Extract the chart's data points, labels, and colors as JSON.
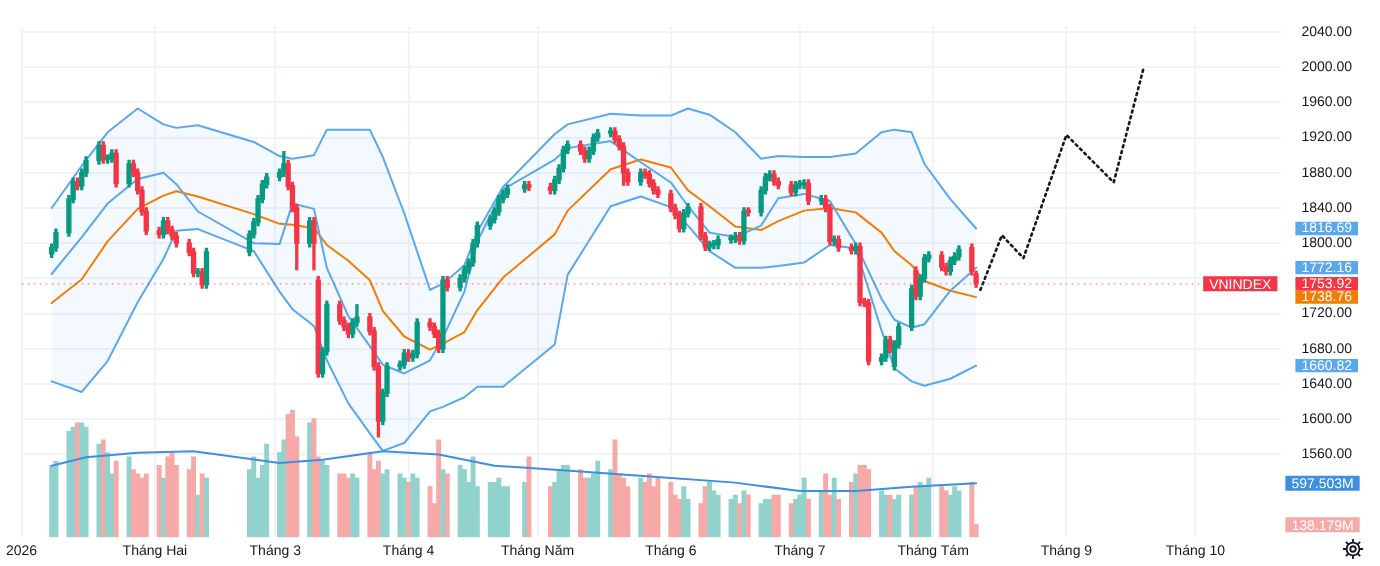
{
  "chart_data": {
    "type": "candlestick",
    "x": [
      "2026-01-08",
      "2026-01-09",
      "2026-01-12",
      "2026-01-13",
      "2026-01-14",
      "2026-01-15",
      "2026-01-16",
      "2026-01-19",
      "2026-01-20",
      "2026-01-21",
      "2026-01-22",
      "2026-01-23",
      "2026-01-26",
      "2026-01-27",
      "2026-01-28",
      "2026-01-29",
      "2026-01-30",
      "2026-02-02",
      "2026-02-03",
      "2026-02-04",
      "2026-02-05",
      "2026-02-06",
      "2026-02-09",
      "2026-02-10",
      "2026-02-11",
      "2026-02-12",
      "2026-02-13",
      "2026-02-23",
      "2026-02-24",
      "2026-02-25",
      "2026-02-26",
      "2026-02-27",
      "2026-03-02",
      "2026-03-03",
      "2026-03-04",
      "2026-03-05",
      "2026-03-06",
      "2026-03-09",
      "2026-03-10",
      "2026-03-11",
      "2026-03-12",
      "2026-03-13",
      "2026-03-16",
      "2026-03-17",
      "2026-03-18",
      "2026-03-19",
      "2026-03-20",
      "2026-03-23",
      "2026-03-24",
      "2026-03-25",
      "2026-03-26",
      "2026-03-27",
      "2026-03-30",
      "2026-03-31",
      "2026-04-01",
      "2026-04-02",
      "2026-04-03",
      "2026-04-06",
      "2026-04-07",
      "2026-04-08",
      "2026-04-09",
      "2026-04-10",
      "2026-04-13",
      "2026-04-14",
      "2026-04-15",
      "2026-04-16",
      "2026-04-17",
      "2026-04-20",
      "2026-04-21",
      "2026-04-22",
      "2026-04-23",
      "2026-04-24",
      "2026-04-28",
      "2026-04-29",
      "2026-05-04",
      "2026-05-05",
      "2026-05-06",
      "2026-05-07",
      "2026-05-08",
      "2026-05-11",
      "2026-05-12",
      "2026-05-13",
      "2026-05-14",
      "2026-05-15",
      "2026-05-18",
      "2026-05-19",
      "2026-05-20",
      "2026-05-21",
      "2026-05-22",
      "2026-05-25",
      "2026-05-26",
      "2026-05-27",
      "2026-05-28",
      "2026-05-29",
      "2026-06-01",
      "2026-06-02",
      "2026-06-03",
      "2026-06-04",
      "2026-06-05",
      "2026-06-08",
      "2026-06-09",
      "2026-06-10",
      "2026-06-11",
      "2026-06-12",
      "2026-06-15",
      "2026-06-16",
      "2026-06-17",
      "2026-06-18",
      "2026-06-19",
      "2026-06-22",
      "2026-06-23",
      "2026-06-24",
      "2026-06-25",
      "2026-06-26",
      "2026-06-29",
      "2026-06-30",
      "2026-07-01",
      "2026-07-02",
      "2026-07-03",
      "2026-07-06",
      "2026-07-07",
      "2026-07-08",
      "2026-07-09",
      "2026-07-10",
      "2026-07-13",
      "2026-07-14",
      "2026-07-15",
      "2026-07-16",
      "2026-07-17",
      "2026-07-20",
      "2026-07-21",
      "2026-07-22",
      "2026-07-23",
      "2026-07-24",
      "2026-07-27",
      "2026-07-28",
      "2026-07-29",
      "2026-07-30",
      "2026-07-31",
      "2026-08-03",
      "2026-08-04",
      "2026-08-05",
      "2026-08-06",
      "2026-08-07",
      "2026-08-10",
      "2026-08-11"
    ],
    "ohlc": [
      [
        1788,
        1799,
        1784,
        1795
      ],
      [
        1795,
        1816,
        1791,
        1812
      ],
      [
        1812,
        1854,
        1808,
        1850
      ],
      [
        1850,
        1874,
        1846,
        1870
      ],
      [
        1870,
        1874,
        1861,
        1865
      ],
      [
        1865,
        1884,
        1861,
        1880
      ],
      [
        1880,
        1898,
        1876,
        1894
      ],
      [
        1894,
        1915,
        1890,
        1911
      ],
      [
        1911,
        1915,
        1891,
        1895
      ],
      [
        1895,
        1900,
        1891,
        1896
      ],
      [
        1896,
        1906,
        1892,
        1902
      ],
      [
        1902,
        1906,
        1864,
        1868
      ],
      [
        1868,
        1894,
        1864,
        1890
      ],
      [
        1890,
        1894,
        1876,
        1880
      ],
      [
        1880,
        1884,
        1856,
        1860
      ],
      [
        1860,
        1864,
        1832,
        1836
      ],
      [
        1836,
        1840,
        1810,
        1814
      ],
      [
        1814,
        1818,
        1806,
        1810
      ],
      [
        1810,
        1829,
        1806,
        1825
      ],
      [
        1825,
        1829,
        1811,
        1815
      ],
      [
        1815,
        1819,
        1804,
        1808
      ],
      [
        1808,
        1812,
        1796,
        1800
      ],
      [
        1800,
        1804,
        1786,
        1790
      ],
      [
        1790,
        1794,
        1762,
        1766
      ],
      [
        1766,
        1771,
        1762,
        1767
      ],
      [
        1767,
        1771,
        1749,
        1753
      ],
      [
        1753,
        1794,
        1749,
        1790
      ],
      [
        1790,
        1814,
        1786,
        1810
      ],
      [
        1810,
        1828,
        1806,
        1824
      ],
      [
        1824,
        1854,
        1820,
        1850
      ],
      [
        1850,
        1871,
        1846,
        1867
      ],
      [
        1867,
        1879,
        1863,
        1875
      ],
      [
        1875,
        1884,
        1871,
        1880
      ],
      [
        1880,
        1904,
        1876,
        1890
      ],
      [
        1890,
        1894,
        1861,
        1865
      ],
      [
        1865,
        1869,
        1836,
        1840
      ],
      [
        1840,
        1844,
        1770,
        1800
      ],
      [
        1800,
        1829,
        1796,
        1825
      ],
      [
        1825,
        1829,
        1770,
        1800
      ],
      [
        1758,
        1762,
        1648,
        1652
      ],
      [
        1652,
        1681,
        1648,
        1677
      ],
      [
        1677,
        1734,
        1673,
        1730
      ],
      [
        1730,
        1734,
        1708,
        1712
      ],
      [
        1712,
        1716,
        1701,
        1705
      ],
      [
        1705,
        1709,
        1693,
        1697
      ],
      [
        1697,
        1714,
        1693,
        1710
      ],
      [
        1710,
        1730,
        1706,
        1716
      ],
      [
        1716,
        1720,
        1696,
        1700
      ],
      [
        1700,
        1704,
        1656,
        1660
      ],
      [
        1660,
        1664,
        1580,
        1598
      ],
      [
        1598,
        1634,
        1594,
        1630
      ],
      [
        1630,
        1664,
        1626,
        1660
      ],
      [
        1660,
        1666,
        1656,
        1662
      ],
      [
        1662,
        1679,
        1658,
        1675
      ],
      [
        1675,
        1679,
        1666,
        1670
      ],
      [
        1670,
        1678,
        1666,
        1674
      ],
      [
        1674,
        1714,
        1670,
        1710
      ],
      [
        1710,
        1714,
        1701,
        1705
      ],
      [
        1705,
        1709,
        1693,
        1697
      ],
      [
        1697,
        1701,
        1676,
        1680
      ],
      [
        1680,
        1762,
        1676,
        1758
      ],
      [
        1758,
        1762,
        1746,
        1750
      ],
      [
        1750,
        1764,
        1746,
        1760
      ],
      [
        1760,
        1774,
        1756,
        1770
      ],
      [
        1770,
        1782,
        1766,
        1778
      ],
      [
        1778,
        1804,
        1774,
        1800
      ],
      [
        1800,
        1824,
        1796,
        1820
      ],
      [
        1820,
        1831,
        1816,
        1827
      ],
      [
        1827,
        1840,
        1823,
        1836
      ],
      [
        1836,
        1854,
        1832,
        1850
      ],
      [
        1850,
        1860,
        1846,
        1856
      ],
      [
        1856,
        1866,
        1852,
        1862
      ],
      [
        1862,
        1870,
        1858,
        1866
      ],
      [
        1866,
        1870,
        1860,
        1864
      ],
      [
        1864,
        1868,
        1856,
        1860
      ],
      [
        1860,
        1876,
        1856,
        1872
      ],
      [
        1872,
        1889,
        1868,
        1885
      ],
      [
        1885,
        1910,
        1881,
        1906
      ],
      [
        1906,
        1916,
        1902,
        1912
      ],
      [
        1912,
        1916,
        1901,
        1905
      ],
      [
        1905,
        1909,
        1892,
        1896
      ],
      [
        1896,
        1909,
        1892,
        1905
      ],
      [
        1905,
        1924,
        1901,
        1920
      ],
      [
        1920,
        1929,
        1916,
        1925
      ],
      [
        1925,
        1931,
        1921,
        1927
      ],
      [
        1927,
        1931,
        1914,
        1918
      ],
      [
        1918,
        1922,
        1906,
        1910
      ],
      [
        1910,
        1914,
        1866,
        1880
      ],
      [
        1880,
        1884,
        1866,
        1870
      ],
      [
        1870,
        1884,
        1866,
        1880
      ],
      [
        1880,
        1884,
        1874,
        1878
      ],
      [
        1878,
        1882,
        1864,
        1868
      ],
      [
        1868,
        1872,
        1856,
        1860
      ],
      [
        1860,
        1864,
        1852,
        1856
      ],
      [
        1856,
        1860,
        1836,
        1840
      ],
      [
        1840,
        1844,
        1828,
        1832
      ],
      [
        1832,
        1836,
        1813,
        1817
      ],
      [
        1817,
        1838,
        1813,
        1834
      ],
      [
        1834,
        1845,
        1830,
        1841
      ],
      [
        1841,
        1845,
        1804,
        1808
      ],
      [
        1808,
        1812,
        1792,
        1796
      ],
      [
        1796,
        1802,
        1792,
        1798
      ],
      [
        1798,
        1803,
        1794,
        1799
      ],
      [
        1798,
        1808,
        1794,
        1804
      ],
      [
        1804,
        1809,
        1800,
        1805
      ],
      [
        1805,
        1812,
        1801,
        1808
      ],
      [
        1808,
        1812,
        1799,
        1803
      ],
      [
        1803,
        1840,
        1799,
        1836
      ],
      [
        1836,
        1840,
        1831,
        1835
      ],
      [
        1835,
        1864,
        1831,
        1860
      ],
      [
        1860,
        1879,
        1856,
        1875
      ],
      [
        1875,
        1882,
        1871,
        1878
      ],
      [
        1878,
        1882,
        1866,
        1870
      ],
      [
        1870,
        1874,
        1862,
        1866
      ],
      [
        1866,
        1870,
        1854,
        1858
      ],
      [
        1858,
        1870,
        1854,
        1866
      ],
      [
        1866,
        1871,
        1862,
        1867
      ],
      [
        1866,
        1872,
        1862,
        1868
      ],
      [
        1868,
        1872,
        1844,
        1848
      ],
      [
        1848,
        1854,
        1844,
        1850
      ],
      [
        1850,
        1854,
        1836,
        1840
      ],
      [
        1840,
        1844,
        1798,
        1802
      ],
      [
        1802,
        1808,
        1798,
        1804
      ],
      [
        1804,
        1808,
        1791,
        1795
      ],
      [
        1795,
        1799,
        1788,
        1792
      ],
      [
        1792,
        1800,
        1788,
        1796
      ],
      [
        1796,
        1800,
        1729,
        1733
      ],
      [
        1733,
        1737,
        1728,
        1732
      ],
      [
        1732,
        1736,
        1662,
        1666
      ],
      [
        1666,
        1674,
        1662,
        1670
      ],
      [
        1670,
        1694,
        1666,
        1690
      ],
      [
        1690,
        1694,
        1676,
        1680
      ],
      [
        1660,
        1689,
        1656,
        1685
      ],
      [
        1685,
        1709,
        1681,
        1705
      ],
      [
        1705,
        1752,
        1701,
        1748
      ],
      [
        1769,
        1773,
        1736,
        1740
      ],
      [
        1740,
        1764,
        1736,
        1760
      ],
      [
        1760,
        1787,
        1756,
        1783
      ],
      [
        1783,
        1790,
        1779,
        1786
      ],
      [
        1786,
        1790,
        1769,
        1773
      ],
      [
        1773,
        1777,
        1764,
        1768
      ],
      [
        1768,
        1784,
        1764,
        1780
      ],
      [
        1780,
        1789,
        1776,
        1785
      ],
      [
        1785,
        1797,
        1781,
        1793
      ],
      [
        1795,
        1799,
        1764,
        1768
      ],
      [
        1765,
        1768,
        1750,
        1753.92
      ]
    ],
    "colors": [
      "#089981",
      "#089981",
      "#089981",
      "#089981",
      "#f23645",
      "#089981",
      "#089981",
      "#089981",
      "#f23645",
      "#089981",
      "#089981",
      "#f23645",
      "#089981",
      "#f23645",
      "#f23645",
      "#f23645",
      "#f23645",
      "#f23645",
      "#089981",
      "#f23645",
      "#f23645",
      "#f23645",
      "#f23645",
      "#f23645",
      "#089981",
      "#f23645",
      "#089981",
      "#089981",
      "#089981",
      "#089981",
      "#089981",
      "#089981",
      "#089981",
      "#089981",
      "#f23645",
      "#f23645",
      "#f23645",
      "#089981",
      "#f23645",
      "#f23645",
      "#089981",
      "#089981",
      "#f23645",
      "#f23645",
      "#f23645",
      "#089981",
      "#089981",
      "#f23645",
      "#f23645",
      "#f23645",
      "#089981",
      "#089981",
      "#089981",
      "#089981",
      "#f23645",
      "#089981",
      "#089981",
      "#f23645",
      "#f23645",
      "#f23645",
      "#089981",
      "#f23645",
      "#089981",
      "#089981",
      "#089981",
      "#089981",
      "#089981",
      "#089981",
      "#089981",
      "#089981",
      "#089981",
      "#089981",
      "#089981",
      "#f23645",
      "#f23645",
      "#089981",
      "#089981",
      "#089981",
      "#089981",
      "#f23645",
      "#f23645",
      "#089981",
      "#089981",
      "#089981",
      "#089981",
      "#f23645",
      "#f23645",
      "#f23645",
      "#f23645",
      "#089981",
      "#f23645",
      "#f23645",
      "#f23645",
      "#f23645",
      "#f23645",
      "#f23645",
      "#f23645",
      "#089981",
      "#089981",
      "#f23645",
      "#f23645",
      "#089981",
      "#089981",
      "#089981",
      "#089981",
      "#089981",
      "#f23645",
      "#089981",
      "#f23645",
      "#089981",
      "#089981",
      "#089981",
      "#f23645",
      "#f23645",
      "#f23645",
      "#089981",
      "#089981",
      "#089981",
      "#f23645",
      "#089981",
      "#f23645",
      "#f23645",
      "#089981",
      "#f23645",
      "#f23645",
      "#089981",
      "#f23645",
      "#f23645",
      "#f23645",
      "#089981",
      "#089981",
      "#f23645",
      "#089981",
      "#089981",
      "#089981",
      "#f23645",
      "#089981",
      "#089981",
      "#089981",
      "#f23645",
      "#f23645",
      "#089981",
      "#089981",
      "#089981",
      "#f23645",
      "#f23645"
    ],
    "series": [
      {
        "type": "bar",
        "axis": "y2",
        "values": [
          793,
          840,
          1170,
          1217,
          1264,
          1264,
          1217,
          1029,
          1076,
          935,
          699,
          840,
          887,
          746,
          699,
          652,
          699,
          793,
          652,
          887,
          935,
          793,
          746,
          887,
          464,
          699,
          652,
          746,
          887,
          652,
          793,
          1029,
          935,
          1076,
          1358,
          1405,
          1111,
          1264,
          1311,
          887,
          840,
          793,
          699,
          699,
          652,
          699,
          652,
          935,
          746,
          840,
          699,
          746,
          699,
          652,
          605,
          699,
          652,
          558,
          369,
          1076,
          746,
          699,
          793,
          746,
          605,
          887,
          558,
          605,
          605,
          652,
          558,
          558,
          605,
          887,
          558,
          605,
          746,
          793,
          793,
          746,
          652,
          652,
          699,
          840,
          746,
          1076,
          699,
          652,
          558,
          652,
          605,
          699,
          558,
          652,
          605,
          464,
          417,
          558,
          417,
          369,
          558,
          605,
          511,
          464,
          417,
          464,
          369,
          511,
          464,
          369,
          417,
          417,
          464,
          464,
          369,
          417,
          464,
          652,
          417,
          511,
          699,
          464,
          652,
          417,
          605,
          699,
          793,
          793,
          746,
          511,
          464,
          464,
          417,
          464,
          464,
          558,
          605,
          558,
          652,
          558,
          511,
          464,
          558,
          511,
          605,
          138.179
        ],
        "colors": [
          "#92d2cc",
          "#92d2cc",
          "#92d2cc",
          "#92d2cc",
          "#f7a9a8",
          "#92d2cc",
          "#92d2cc",
          "#92d2cc",
          "#f7a9a8",
          "#92d2cc",
          "#92d2cc",
          "#f7a9a8",
          "#92d2cc",
          "#f7a9a8",
          "#f7a9a8",
          "#f7a9a8",
          "#f7a9a8",
          "#f7a9a8",
          "#92d2cc",
          "#f7a9a8",
          "#f7a9a8",
          "#f7a9a8",
          "#f7a9a8",
          "#f7a9a8",
          "#92d2cc",
          "#f7a9a8",
          "#92d2cc",
          "#92d2cc",
          "#92d2cc",
          "#92d2cc",
          "#92d2cc",
          "#92d2cc",
          "#92d2cc",
          "#92d2cc",
          "#f7a9a8",
          "#f7a9a8",
          "#f7a9a8",
          "#92d2cc",
          "#f7a9a8",
          "#f7a9a8",
          "#92d2cc",
          "#92d2cc",
          "#f7a9a8",
          "#f7a9a8",
          "#f7a9a8",
          "#92d2cc",
          "#92d2cc",
          "#f7a9a8",
          "#f7a9a8",
          "#f7a9a8",
          "#92d2cc",
          "#92d2cc",
          "#92d2cc",
          "#92d2cc",
          "#f7a9a8",
          "#92d2cc",
          "#92d2cc",
          "#f7a9a8",
          "#f7a9a8",
          "#f7a9a8",
          "#92d2cc",
          "#f7a9a8",
          "#92d2cc",
          "#92d2cc",
          "#92d2cc",
          "#92d2cc",
          "#92d2cc",
          "#92d2cc",
          "#92d2cc",
          "#92d2cc",
          "#92d2cc",
          "#92d2cc",
          "#92d2cc",
          "#f7a9a8",
          "#f7a9a8",
          "#92d2cc",
          "#92d2cc",
          "#92d2cc",
          "#92d2cc",
          "#f7a9a8",
          "#f7a9a8",
          "#92d2cc",
          "#92d2cc",
          "#92d2cc",
          "#92d2cc",
          "#f7a9a8",
          "#f7a9a8",
          "#f7a9a8",
          "#f7a9a8",
          "#92d2cc",
          "#f7a9a8",
          "#f7a9a8",
          "#f7a9a8",
          "#f7a9a8",
          "#f7a9a8",
          "#f7a9a8",
          "#f7a9a8",
          "#92d2cc",
          "#92d2cc",
          "#f7a9a8",
          "#f7a9a8",
          "#92d2cc",
          "#92d2cc",
          "#92d2cc",
          "#92d2cc",
          "#92d2cc",
          "#f7a9a8",
          "#92d2cc",
          "#f7a9a8",
          "#92d2cc",
          "#92d2cc",
          "#92d2cc",
          "#f7a9a8",
          "#f7a9a8",
          "#f7a9a8",
          "#92d2cc",
          "#92d2cc",
          "#92d2cc",
          "#f7a9a8",
          "#92d2cc",
          "#f7a9a8",
          "#f7a9a8",
          "#92d2cc",
          "#f7a9a8",
          "#f7a9a8",
          "#92d2cc",
          "#f7a9a8",
          "#f7a9a8",
          "#f7a9a8",
          "#92d2cc",
          "#92d2cc",
          "#f7a9a8",
          "#92d2cc",
          "#92d2cc",
          "#92d2cc",
          "#f7a9a8",
          "#92d2cc",
          "#92d2cc",
          "#92d2cc",
          "#f7a9a8",
          "#f7a9a8",
          "#92d2cc",
          "#92d2cc",
          "#92d2cc",
          "#f7a9a8",
          "#f7a9a8"
        ]
      },
      {
        "type": "line",
        "axis": "y2",
        "color": "#3d8fe0",
        "x": [
          "2026-01-08",
          "2026-01-16",
          "2026-01-28",
          "2026-02-10",
          "2026-03-02",
          "2026-03-12",
          "2026-03-26",
          "2026-04-08",
          "2026-04-21",
          "2026-05-11",
          "2026-05-28",
          "2026-06-16",
          "2026-07-01",
          "2026-07-14",
          "2026-07-27",
          "2026-08-11"
        ],
        "values": [
          793,
          887,
          935,
          953,
          822,
          859,
          953,
          916,
          793,
          727,
          671,
          605,
          511,
          511,
          558,
          597.503
        ]
      },
      {
        "type": "line",
        "color": "#5aa7ee",
        "x": [
          "2026-01-08",
          "2026-01-15",
          "2026-01-21",
          "2026-01-28",
          "2026-02-03",
          "2026-02-06",
          "2026-02-11",
          "2026-02-24",
          "2026-03-02",
          "2026-03-05",
          "2026-03-10",
          "2026-03-13",
          "2026-03-18",
          "2026-03-23",
          "2026-03-26",
          "2026-03-31",
          "2026-04-06",
          "2026-04-09",
          "2026-04-14",
          "2026-04-17",
          "2026-04-23",
          "2026-05-05",
          "2026-05-08",
          "2026-05-18",
          "2026-05-25",
          "2026-06-01",
          "2026-06-05",
          "2026-06-10",
          "2026-06-16",
          "2026-06-22",
          "2026-06-26",
          "2026-07-02",
          "2026-07-08",
          "2026-07-14",
          "2026-07-20",
          "2026-07-23",
          "2026-07-27",
          "2026-07-30",
          "2026-08-05",
          "2026-08-11"
        ],
        "values": [
          1840,
          1888,
          1926,
          1953,
          1935,
          1931,
          1934,
          1915,
          1899,
          1896,
          1900,
          1929,
          1929,
          1929,
          1898,
          1834,
          1747,
          1754,
          1775,
          1813,
          1864,
          1924,
          1935,
          1947,
          1945,
          1945,
          1953,
          1946,
          1926,
          1896,
          1899,
          1898,
          1898,
          1902,
          1926,
          1929,
          1926,
          1890,
          1850,
          1816.69
        ]
      },
      {
        "type": "line",
        "color": "#5aa7ee",
        "x": [
          "2026-01-08",
          "2026-01-15",
          "2026-01-21",
          "2026-01-28",
          "2026-02-03",
          "2026-02-06",
          "2026-02-11",
          "2026-02-24",
          "2026-03-02",
          "2026-03-05",
          "2026-03-10",
          "2026-03-13",
          "2026-03-18",
          "2026-03-23",
          "2026-03-26",
          "2026-03-31",
          "2026-04-06",
          "2026-04-09",
          "2026-04-14",
          "2026-04-17",
          "2026-04-23",
          "2026-05-05",
          "2026-05-08",
          "2026-05-18",
          "2026-05-25",
          "2026-06-01",
          "2026-06-05",
          "2026-06-10",
          "2026-06-16",
          "2026-06-22",
          "2026-06-26",
          "2026-07-02",
          "2026-07-08",
          "2026-07-14",
          "2026-07-20",
          "2026-07-23",
          "2026-07-27",
          "2026-07-30",
          "2026-08-05",
          "2026-08-11"
        ],
        "values": [
          1765,
          1807,
          1845,
          1873,
          1880,
          1867,
          1836,
          1800,
          1799,
          1845,
          1839,
          1772,
          1717,
          1683,
          1662,
          1652,
          1667,
          1693,
          1745,
          1802,
          1861,
          1895,
          1908,
          1916,
          1892,
          1869,
          1842,
          1812,
          1807,
          1820,
          1851,
          1856,
          1848,
          1799,
          1737,
          1713,
          1704,
          1708,
          1746,
          1772.16
        ],
        "upper": [
          1840,
          1888,
          1926,
          1953,
          1935,
          1931,
          1934,
          1915,
          1899,
          1896,
          1900,
          1929,
          1929,
          1929,
          1898,
          1834,
          1747,
          1754,
          1775,
          1813,
          1864,
          1924,
          1935,
          1947,
          1945,
          1945,
          1953,
          1946,
          1926,
          1896,
          1899,
          1898,
          1898,
          1902,
          1926,
          1929,
          1926,
          1890,
          1850,
          1816.69
        ],
        "lower": [
          1643,
          1631,
          1666,
          1733,
          1782,
          1814,
          1816,
          1791,
          1745,
          1725,
          1706,
          1667,
          1618,
          1584,
          1564,
          1573,
          1609,
          1614,
          1625,
          1637,
          1637,
          1685,
          1764,
          1842,
          1853,
          1841,
          1820,
          1791,
          1772,
          1772,
          1774,
          1778,
          1798,
          1794,
          1701,
          1658,
          1643,
          1638,
          1646,
          1660.82
        ]
      },
      {
        "type": "line",
        "color": "#5aa7ee",
        "x": [
          "2026-01-08",
          "2026-01-15",
          "2026-01-21",
          "2026-01-28",
          "2026-02-03",
          "2026-02-06",
          "2026-02-11",
          "2026-02-24",
          "2026-03-02",
          "2026-03-05",
          "2026-03-10",
          "2026-03-13",
          "2026-03-18",
          "2026-03-23",
          "2026-03-26",
          "2026-03-31",
          "2026-04-06",
          "2026-04-09",
          "2026-04-14",
          "2026-04-17",
          "2026-04-23",
          "2026-05-05",
          "2026-05-08",
          "2026-05-18",
          "2026-05-25",
          "2026-06-01",
          "2026-06-05",
          "2026-06-10",
          "2026-06-16",
          "2026-06-22",
          "2026-06-26",
          "2026-07-02",
          "2026-07-08",
          "2026-07-14",
          "2026-07-20",
          "2026-07-23",
          "2026-07-27",
          "2026-07-30",
          "2026-08-05",
          "2026-08-11"
        ],
        "values": [
          1643,
          1631,
          1666,
          1733,
          1782,
          1814,
          1816,
          1791,
          1745,
          1725,
          1706,
          1667,
          1618,
          1584,
          1564,
          1573,
          1609,
          1614,
          1625,
          1637,
          1637,
          1685,
          1764,
          1842,
          1853,
          1841,
          1820,
          1791,
          1772,
          1772,
          1774,
          1778,
          1798,
          1794,
          1701,
          1658,
          1643,
          1638,
          1646,
          1660.82
        ]
      },
      {
        "type": "line",
        "color": "#f57c00",
        "x": [
          "2026-01-08",
          "2026-01-15",
          "2026-01-21",
          "2026-01-28",
          "2026-02-03",
          "2026-02-06",
          "2026-02-11",
          "2026-02-24",
          "2026-03-02",
          "2026-03-05",
          "2026-03-10",
          "2026-03-13",
          "2026-03-18",
          "2026-03-23",
          "2026-03-26",
          "2026-03-31",
          "2026-04-06",
          "2026-04-09",
          "2026-04-14",
          "2026-04-17",
          "2026-04-23",
          "2026-05-05",
          "2026-05-08",
          "2026-05-18",
          "2026-05-25",
          "2026-06-01",
          "2026-06-05",
          "2026-06-10",
          "2026-06-16",
          "2026-06-22",
          "2026-06-26",
          "2026-07-02",
          "2026-07-08",
          "2026-07-14",
          "2026-07-20",
          "2026-07-23",
          "2026-07-27",
          "2026-07-30",
          "2026-08-05",
          "2026-08-11"
        ],
        "values": [
          1732,
          1759,
          1802,
          1839,
          1854,
          1859,
          1853,
          1833,
          1822,
          1821,
          1817,
          1798,
          1780,
          1758,
          1723,
          1694,
          1679,
          1686,
          1699,
          1724,
          1761,
          1810,
          1837,
          1884,
          1895,
          1886,
          1860,
          1842,
          1819,
          1815,
          1825,
          1837,
          1840,
          1835,
          1812,
          1791,
          1775,
          1757,
          1746,
          1738.76
        ]
      },
      {
        "type": "line",
        "color": "#131722",
        "line_style": "dotted",
        "x": [
          "2026-08-12",
          "2026-08-17",
          "2026-08-22",
          "2026-09-01",
          "2026-09-12",
          "2026-09-19"
        ],
        "values": [
          1747,
          1809,
          1783,
          1923,
          1869,
          2000
        ]
      }
    ],
    "xlim": [
      "2026-01-01",
      "2026-10-21"
    ],
    "xticks": [
      {
        "value": "2026-01-01",
        "label": "2026"
      },
      {
        "value": "2026-02-01",
        "label": "Tháng Hai"
      },
      {
        "value": "2026-03-01",
        "label": "Tháng 3"
      },
      {
        "value": "2026-04-01",
        "label": "Tháng 4"
      },
      {
        "value": "2026-05-01",
        "label": "Tháng Năm"
      },
      {
        "value": "2026-06-01",
        "label": "Tháng 6"
      },
      {
        "value": "2026-07-01",
        "label": "Tháng 7"
      },
      {
        "value": "2026-08-01",
        "label": "Tháng Tám"
      },
      {
        "value": "2026-09-01",
        "label": "Tháng 9"
      },
      {
        "value": "2026-10-01",
        "label": "Tháng 10"
      }
    ],
    "ylim": [
      1466,
      2046
    ],
    "yticks": [
      {
        "value": 1560,
        "label": "1560.00"
      },
      {
        "value": 1600,
        "label": "1600.00"
      },
      {
        "value": 1640,
        "label": "1640.00"
      },
      {
        "value": 1660.82,
        "label": "1660.82"
      },
      {
        "value": 1680,
        "label": "1680.00"
      },
      {
        "value": 1720,
        "label": "1720.00"
      },
      {
        "value": 1738.76,
        "label": "1738.76"
      },
      {
        "value": 1753.92,
        "label": "1753.92"
      },
      {
        "value": 1760,
        "label": null
      },
      {
        "value": 1772.16,
        "label": "1772.16"
      },
      {
        "value": 1800,
        "label": "1800.00"
      },
      {
        "value": 1816.69,
        "label": "1816.69"
      },
      {
        "value": 1840,
        "label": "1840.00"
      },
      {
        "value": 1880,
        "label": "1880.00"
      },
      {
        "value": 1920,
        "label": "1920.00"
      },
      {
        "value": 1960,
        "label": "1960.00"
      },
      {
        "value": 2000,
        "label": "2000.00"
      },
      {
        "value": 2040,
        "label": "2040.00"
      }
    ],
    "y2lim": [
      0,
      5660
    ],
    "y2ticks": [
      {
        "value": 597.503,
        "label": "597.503M"
      },
      {
        "value": 138.179,
        "label": "138.179M"
      }
    ],
    "ref_lines": [
      {
        "axis": "y",
        "value": 1753.92,
        "label": "VNINDEX",
        "color": "#f23645",
        "line_style": "dotted"
      }
    ],
    "grid": true
  }
}
